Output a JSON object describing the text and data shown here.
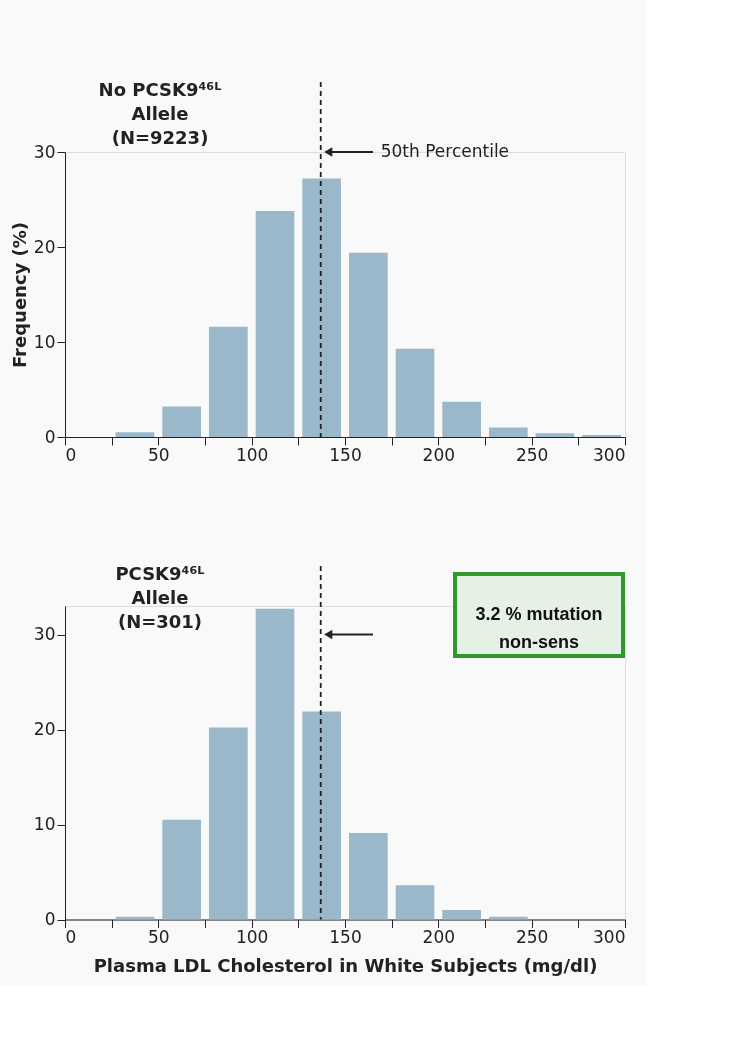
{
  "chart_data": [
    {
      "type": "histogram",
      "title": "No PCSK9⁴⁶ᴸ\nAllele\n(N=9223)",
      "ylabel": "Frequency (%)",
      "bins": [
        25,
        50,
        75,
        100,
        125,
        150,
        175,
        200,
        225,
        250,
        275,
        300
      ],
      "values": [
        0.5,
        3.2,
        11.6,
        23.8,
        27.2,
        19.4,
        9.3,
        3.7,
        1.0,
        0.4,
        0.2
      ],
      "color": "#9ab8c9",
      "xlim": [
        0,
        300
      ],
      "xticks": [
        0,
        {
          "value": 25,
          "label": null
        },
        50,
        {
          "value": 75,
          "label": null
        },
        100,
        {
          "value": 125,
          "label": null
        },
        150,
        {
          "value": 175,
          "label": null
        },
        200,
        {
          "value": 225,
          "label": null
        },
        250,
        {
          "value": 275,
          "label": null
        },
        300
      ],
      "ylim": [
        0,
        30
      ],
      "yticks": [
        0,
        10,
        20,
        30
      ],
      "grid": false,
      "ref_lines": [
        {
          "axis": "x",
          "value": 137,
          "label": "50th Percentile",
          "line_style": "dashed",
          "color": "#222222"
        }
      ]
    },
    {
      "type": "histogram",
      "title": "PCSK9⁴⁶ᴸ\nAllele\n(N=301)",
      "xlabel": "Plasma LDL Cholesterol in White Subjects (mg/dl)",
      "bins": [
        25,
        50,
        75,
        100,
        125,
        150,
        175,
        200,
        225,
        250,
        275,
        300
      ],
      "values": [
        0.3,
        10.5,
        20.2,
        32.7,
        21.9,
        9.1,
        3.6,
        1.0,
        0.3,
        0,
        0
      ],
      "color": "#9ab8c9",
      "xlim": [
        0,
        300
      ],
      "xticks": [
        0,
        {
          "value": 25,
          "label": null
        },
        50,
        {
          "value": 75,
          "label": null
        },
        100,
        {
          "value": 125,
          "label": null
        },
        150,
        {
          "value": 175,
          "label": null
        },
        200,
        {
          "value": 225,
          "label": null
        },
        250,
        {
          "value": 275,
          "label": null
        },
        300
      ],
      "ylim": [
        0,
        33
      ],
      "yticks": [
        0,
        10,
        20,
        30
      ],
      "grid": false,
      "ref_lines": [
        {
          "axis": "x",
          "value": 137,
          "line_style": "dashed",
          "color": "#222222"
        }
      ],
      "annotations": [
        "3.2 % mutation non-sens"
      ]
    }
  ]
}
